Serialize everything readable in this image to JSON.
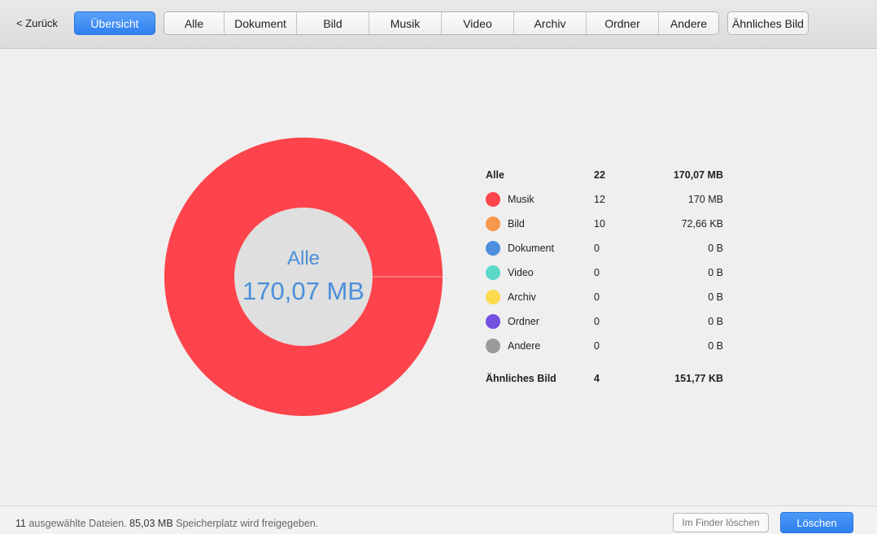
{
  "toolbar": {
    "back_label": "< Zurück",
    "overview_label": "Übersicht",
    "filters": [
      "Alle",
      "Dokument",
      "Bild",
      "Musik",
      "Video",
      "Archiv",
      "Ordner",
      "Andere"
    ],
    "similar_label": "Ähnliches Bild"
  },
  "chart_data": {
    "type": "pie",
    "center_title": "Alle",
    "center_value": "170,07 MB",
    "slices": [
      {
        "name": "Musik",
        "value": 170,
        "color": "#fd434b"
      },
      {
        "name": "Bild",
        "value": 0.07266,
        "color": "#f5974c"
      },
      {
        "name": "Dokument",
        "value": 0,
        "color": "#4d8fde"
      },
      {
        "name": "Video",
        "value": 0,
        "color": "#5bd8c8"
      },
      {
        "name": "Archiv",
        "value": 0,
        "color": "#fdd94e"
      },
      {
        "name": "Ordner",
        "value": 0,
        "color": "#7350e0"
      },
      {
        "name": "Andere",
        "value": 0,
        "color": "#9a9a9a"
      }
    ],
    "hole_color": "#dfdfdf"
  },
  "legend": {
    "total": {
      "name": "Alle",
      "count": "22",
      "size": "170,07 MB"
    },
    "items": [
      {
        "name": "Musik",
        "count": "12",
        "size": "170 MB",
        "color": "#fd434b"
      },
      {
        "name": "Bild",
        "count": "10",
        "size": "72,66 KB",
        "color": "#f5974c"
      },
      {
        "name": "Dokument",
        "count": "0",
        "size": "0 B",
        "color": "#4d8fde"
      },
      {
        "name": "Video",
        "count": "0",
        "size": "0 B",
        "color": "#5bd8c8"
      },
      {
        "name": "Archiv",
        "count": "0",
        "size": "0 B",
        "color": "#fdd94e"
      },
      {
        "name": "Ordner",
        "count": "0",
        "size": "0 B",
        "color": "#7350e0"
      },
      {
        "name": "Andere",
        "count": "0",
        "size": "0 B",
        "color": "#9a9a9a"
      }
    ],
    "similar": {
      "name": "Ähnliches Bild",
      "count": "4",
      "size": "151,77 KB"
    }
  },
  "footer": {
    "count": "11",
    "text_a": " ausgewählte Dateien. ",
    "size": "85,03 MB",
    "text_b": " Speicherplatz wird freigegeben.",
    "finder_label": "Im Finder löschen",
    "delete_label": "Löschen"
  }
}
